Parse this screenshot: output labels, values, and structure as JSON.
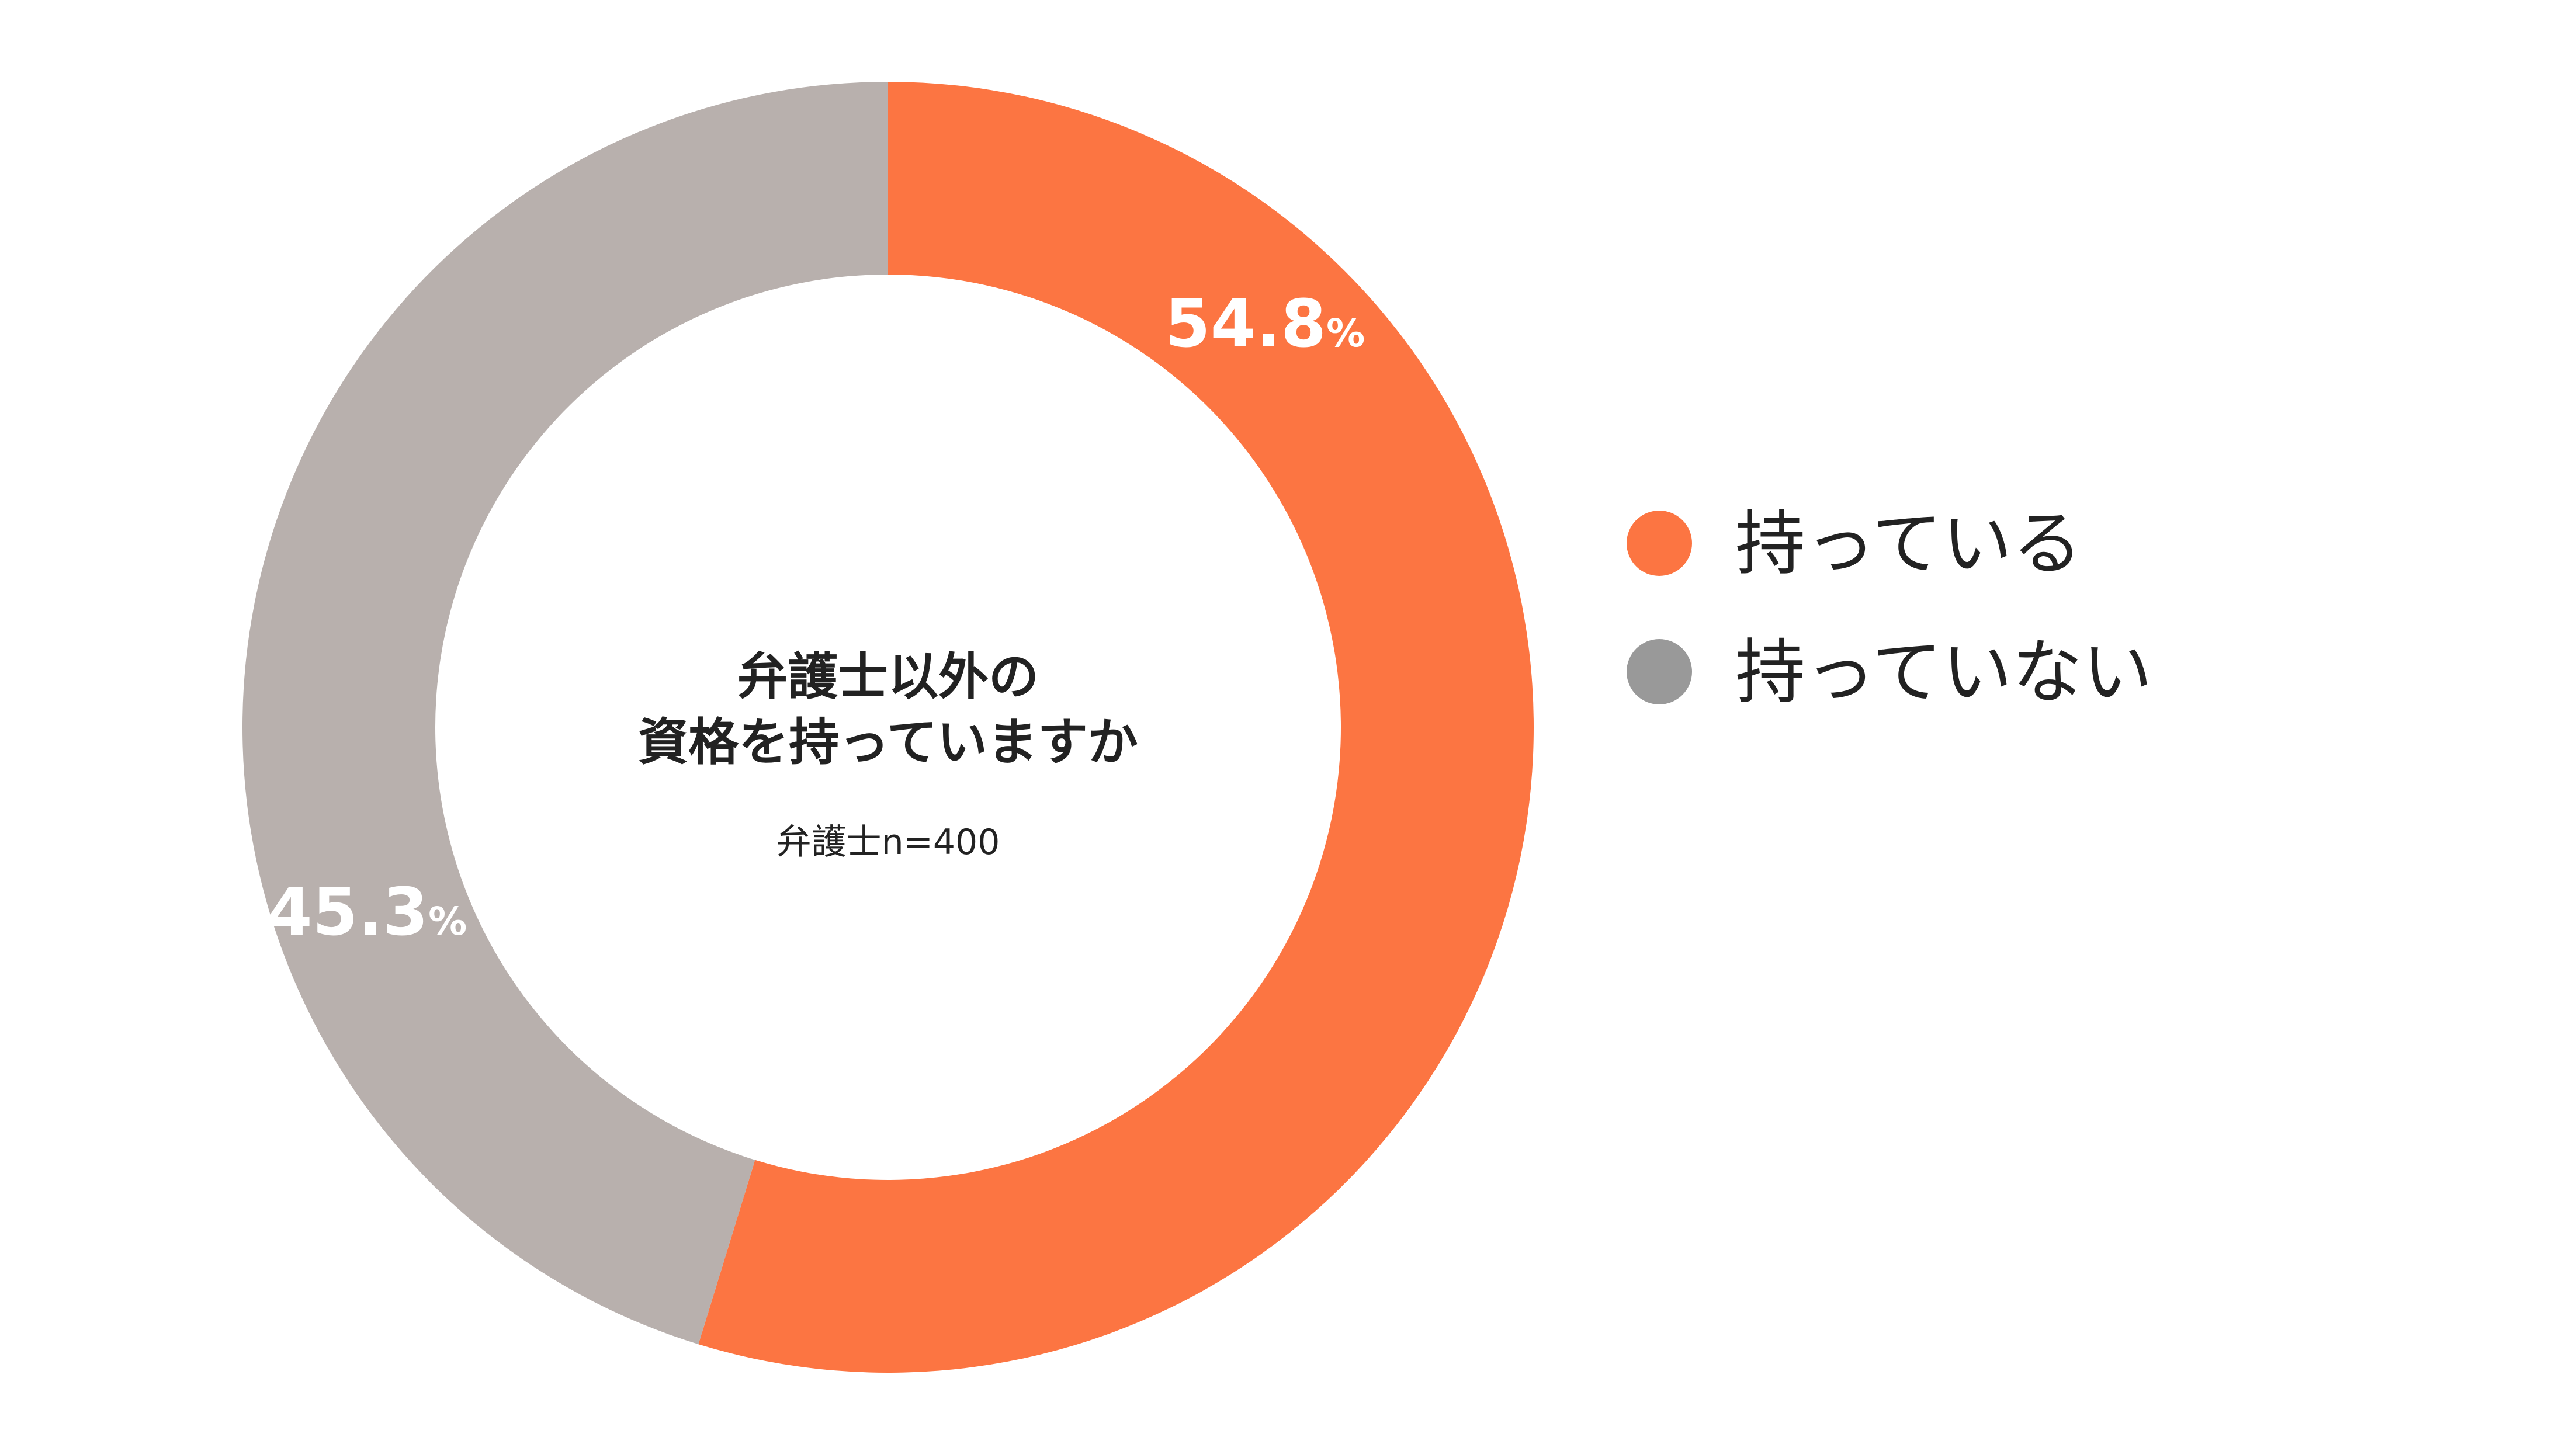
{
  "chart_data": {
    "type": "pie",
    "donut": true,
    "title_lines": [
      "弁護士以外の",
      "資格を持っていますか"
    ],
    "sample_note": "弁護士n=400",
    "unit": "%",
    "slices": [
      {
        "label": "持っている",
        "value": 54.8,
        "value_text": "54.8",
        "color": "#FC7542"
      },
      {
        "label": "持っていない",
        "value": 45.3,
        "value_text": "45.3",
        "color": "#B8B0AD"
      }
    ],
    "legend": {
      "placement": "right",
      "entries": [
        {
          "label": "持っている",
          "color": "#FC7542"
        },
        {
          "label": "持っていない",
          "color": "#999999"
        }
      ]
    }
  }
}
